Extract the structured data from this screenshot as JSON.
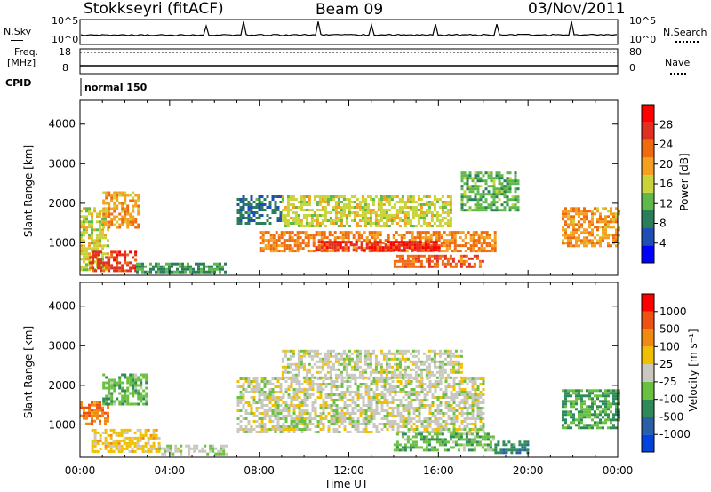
{
  "header": {
    "station": "Stokkseyri (fitACF)",
    "beam": "Beam 09",
    "date": "03/Nov/2011"
  },
  "noise_panel": {
    "left_label": "N.Sky",
    "left_ticks": [
      "10^5",
      "10^0"
    ],
    "right_label": "N.Search",
    "right_ticks": [
      "10^5",
      "10^0"
    ]
  },
  "freq_panel": {
    "left_label": "Freq.",
    "left_unit": "[MHz]",
    "left_ticks": [
      "18",
      "8"
    ],
    "right_label": "Nave",
    "right_ticks": [
      "80",
      "0"
    ]
  },
  "cpid": {
    "label": "CPID",
    "value": "normal 150"
  },
  "colors": {
    "power_scale": [
      "#0000ff",
      "#1f4fb4",
      "#2a7f5a",
      "#5fb84a",
      "#c8d43a",
      "#f5a020",
      "#f06a10",
      "#e03020",
      "#ff0000"
    ],
    "velocity_scale": [
      "#0044dd",
      "#2a5fa8",
      "#2f8a5a",
      "#6ac040",
      "#c8c8c0",
      "#f0c000",
      "#f08a10",
      "#f05010",
      "#ff0000"
    ]
  },
  "chart_data": [
    {
      "type": "heatmap",
      "title": "Power",
      "ylabel": "Slant Range [km]",
      "xlabel": "Time UT",
      "x_ticks": [
        "00:00",
        "04:00",
        "08:00",
        "12:00",
        "16:00",
        "20:00",
        "00:00"
      ],
      "y_ticks": [
        "1000",
        "2000",
        "3000",
        "4000"
      ],
      "ylim": [
        180,
        4600
      ],
      "xlim": [
        0,
        24
      ],
      "colorbar": {
        "label": "Power [dB]",
        "ticks": [
          "28",
          "24",
          "20",
          "16",
          "12",
          "8",
          "4"
        ],
        "range": [
          0,
          32
        ]
      },
      "regions": [
        {
          "t0": 0.0,
          "t1": 1.3,
          "r0": 300,
          "r1": 1900,
          "v": 16
        },
        {
          "t0": 0.4,
          "t1": 2.5,
          "r0": 300,
          "r1": 800,
          "v": 26
        },
        {
          "t0": 1.0,
          "t1": 2.6,
          "r0": 1400,
          "r1": 2300,
          "v": 20
        },
        {
          "t0": 2.5,
          "t1": 6.5,
          "r0": 250,
          "r1": 500,
          "v": 10
        },
        {
          "t0": 7.0,
          "t1": 9.0,
          "r0": 1500,
          "r1": 2200,
          "v": 8
        },
        {
          "t0": 8.0,
          "t1": 18.5,
          "r0": 800,
          "r1": 1300,
          "v": 22
        },
        {
          "t0": 9.0,
          "t1": 16.5,
          "r0": 1400,
          "r1": 2200,
          "v": 16
        },
        {
          "t0": 10.5,
          "t1": 16.0,
          "r0": 800,
          "r1": 1050,
          "v": 28
        },
        {
          "t0": 14.0,
          "t1": 18.0,
          "r0": 400,
          "r1": 700,
          "v": 24
        },
        {
          "t0": 17.0,
          "t1": 19.5,
          "r0": 1800,
          "r1": 2800,
          "v": 12
        },
        {
          "t0": 21.5,
          "t1": 24.0,
          "r0": 900,
          "r1": 1900,
          "v": 20
        }
      ]
    },
    {
      "type": "heatmap",
      "title": "Velocity",
      "ylabel": "Slant Range [km]",
      "xlabel": "Time UT",
      "x_ticks": [
        "00:00",
        "04:00",
        "08:00",
        "12:00",
        "16:00",
        "20:00",
        "00:00"
      ],
      "y_ticks": [
        "1000",
        "2000",
        "3000",
        "4000"
      ],
      "ylim": [
        180,
        4600
      ],
      "xlim": [
        0,
        24
      ],
      "colorbar": {
        "label": "Velocity [m s⁻¹]",
        "ticks": [
          "1000",
          "500",
          "100",
          "25",
          "-25",
          "-100",
          "-500",
          "-1000"
        ],
        "range": [
          -1200,
          1200
        ]
      },
      "regions": [
        {
          "t0": 0.0,
          "t1": 1.2,
          "r0": 1000,
          "r1": 1600,
          "v": 600
        },
        {
          "t0": 0.5,
          "t1": 3.5,
          "r0": 300,
          "r1": 900,
          "v": 250
        },
        {
          "t0": 1.0,
          "t1": 3.0,
          "r0": 1500,
          "r1": 2300,
          "v": -300
        },
        {
          "t0": 3.5,
          "t1": 6.5,
          "r0": 250,
          "r1": 500,
          "v": -70
        },
        {
          "t0": 7.0,
          "t1": 18.0,
          "r0": 800,
          "r1": 2200,
          "v": 0
        },
        {
          "t0": 9.0,
          "t1": 17.0,
          "r0": 2200,
          "r1": 2900,
          "v": 0
        },
        {
          "t0": 14.0,
          "t1": 18.5,
          "r0": 350,
          "r1": 800,
          "v": -300
        },
        {
          "t0": 18.5,
          "t1": 20.0,
          "r0": 300,
          "r1": 600,
          "v": -600
        },
        {
          "t0": 21.5,
          "t1": 24.0,
          "r0": 900,
          "r1": 1900,
          "v": -400
        }
      ]
    }
  ]
}
